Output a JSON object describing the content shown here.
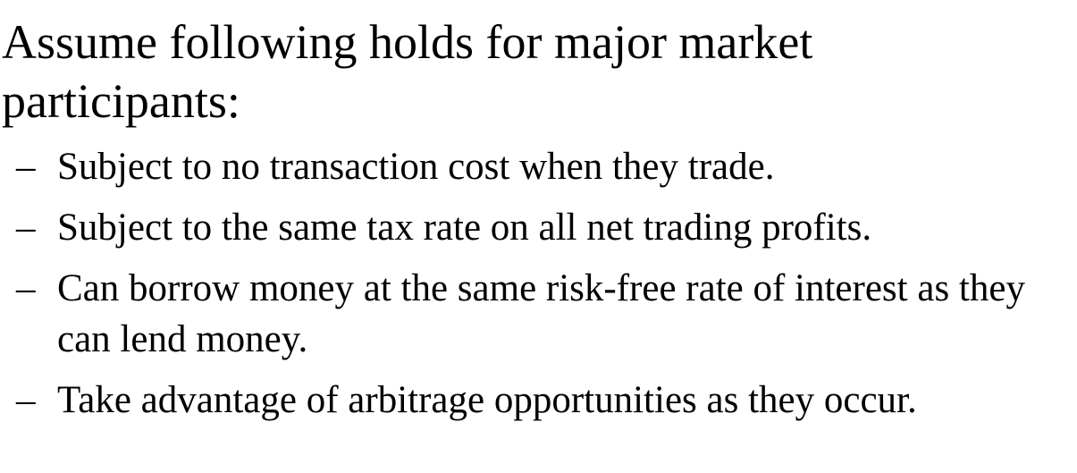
{
  "heading": "Assume following holds for major market participants:",
  "dash": "–",
  "bullets": [
    "Subject to no transaction cost when they trade.",
    "Subject to the same tax rate on all net trading profits.",
    "Can borrow money at the same risk-free rate of interest as they can lend money.",
    "Take advantage of arbitrage opportunities as they occur."
  ]
}
